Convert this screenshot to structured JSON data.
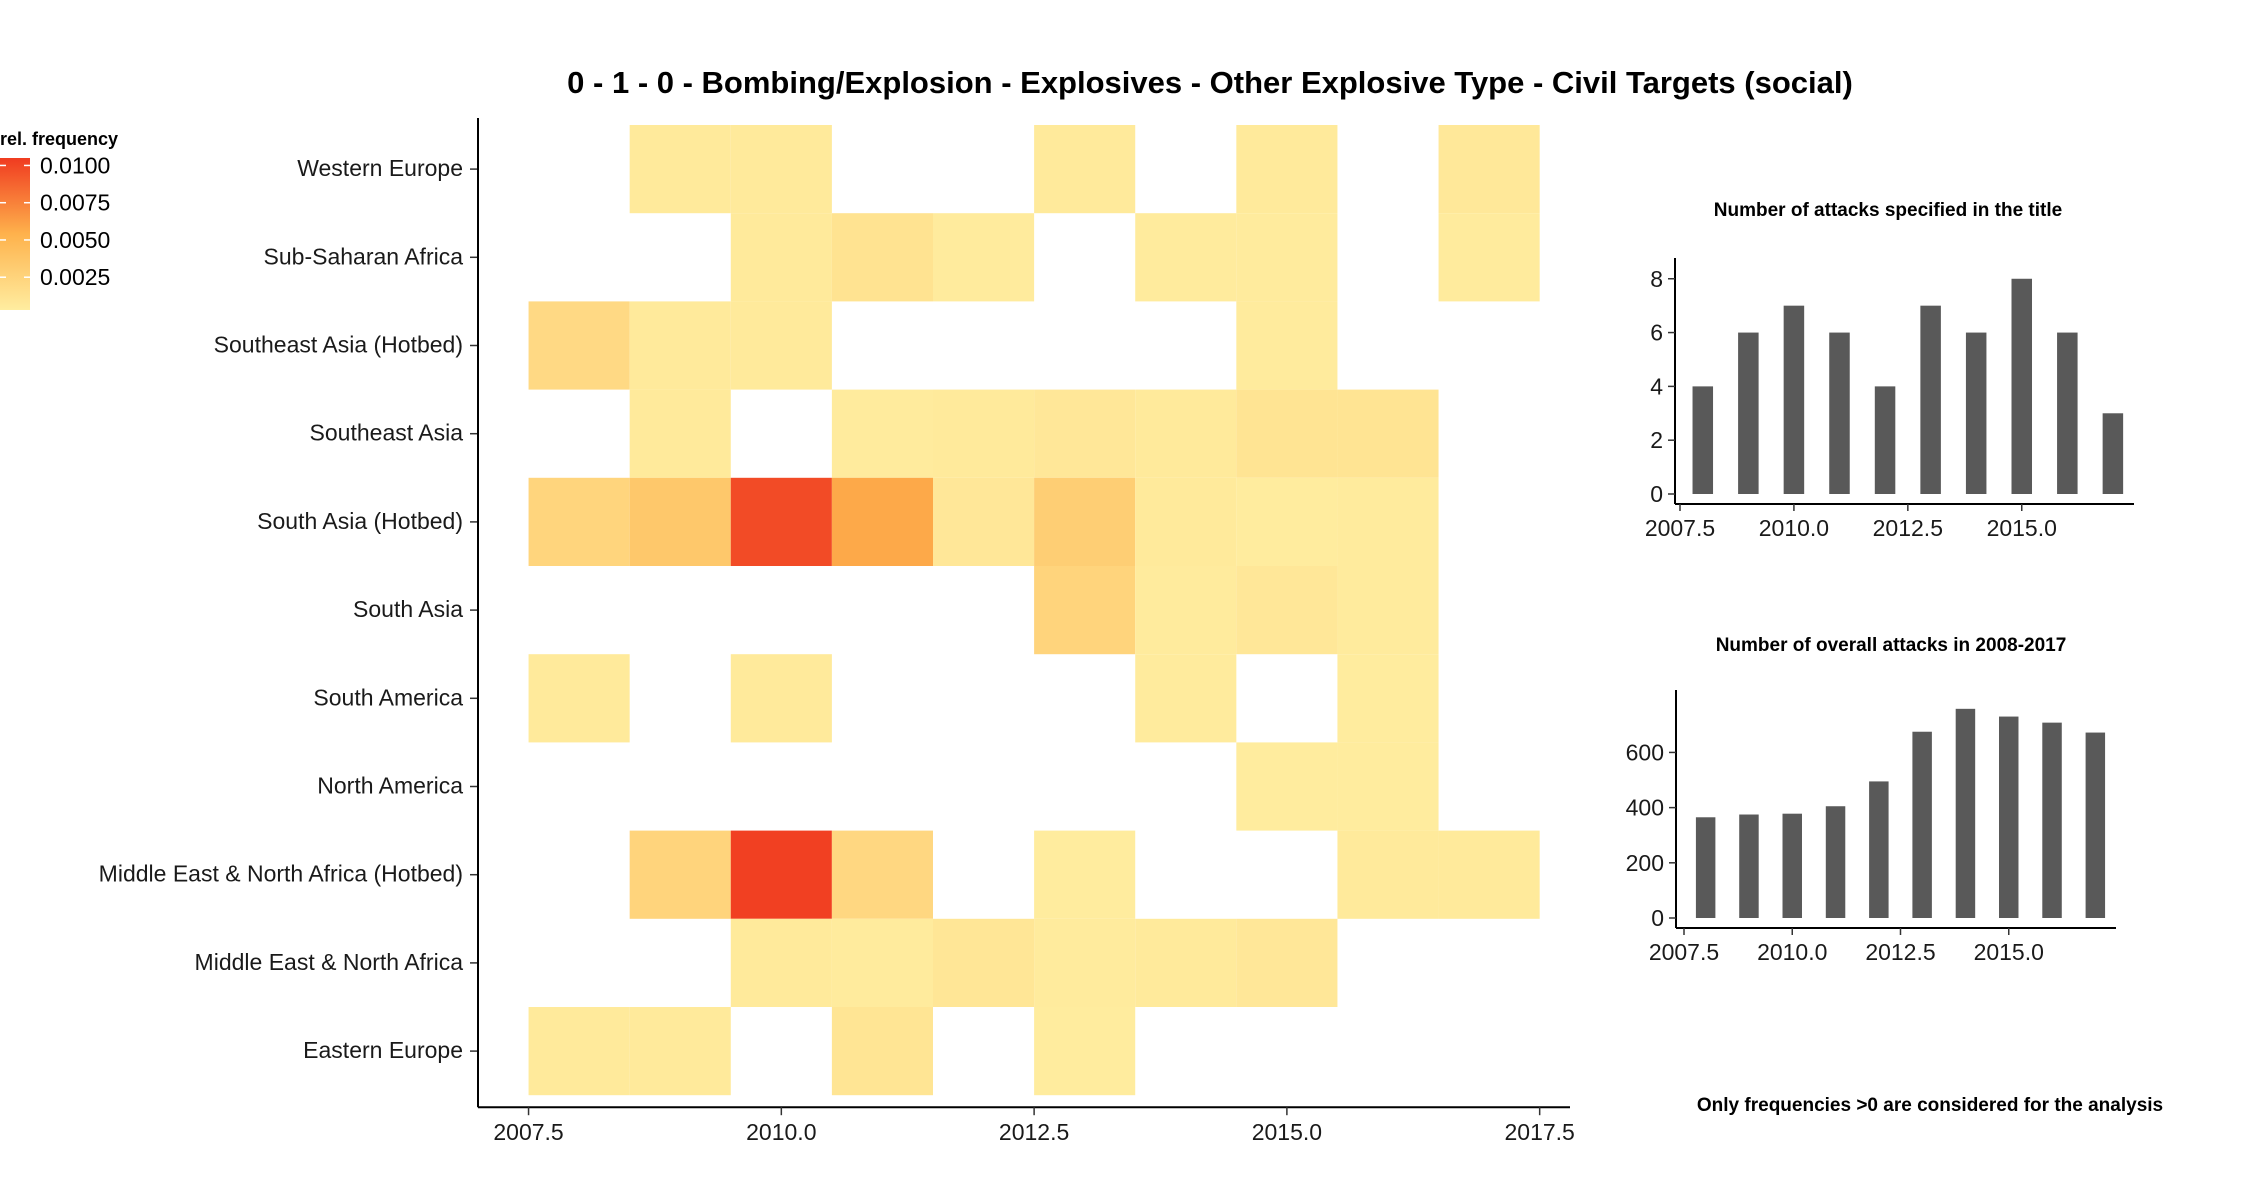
{
  "chart_data": [
    {
      "type": "heatmap",
      "title": "0 - 1 - 0 - Bombing/Explosion - Explosives - Other Explosive Type - Civil Targets (social)",
      "legend": {
        "title": "rel. frequency",
        "ticks": [
          "0.0100",
          "0.0075",
          "0.0050",
          "0.0025"
        ],
        "tick_values": [
          0.01,
          0.0075,
          0.005,
          0.0025
        ],
        "min": 0.0003,
        "max": 0.0105
      },
      "x": [
        2008,
        2009,
        2010,
        2011,
        2012,
        2013,
        2014,
        2015,
        2016,
        2017
      ],
      "x_ticks": [
        "2007.5",
        "2010.0",
        "2012.5",
        "2015.0",
        "2017.5"
      ],
      "x_tick_values": [
        2007.5,
        2010.0,
        2012.5,
        2015.0,
        2017.5
      ],
      "xlim": [
        2007.0,
        2017.8
      ],
      "regions": [
        "Western Europe",
        "Sub-Saharan Africa",
        "Southeast Asia (Hotbed)",
        "Southeast Asia",
        "South Asia (Hotbed)",
        "South Asia",
        "South America",
        "North America",
        "Middle East & North Africa (Hotbed)",
        "Middle East & North Africa",
        "Eastern Europe"
      ],
      "values": [
        [
          null,
          0.0006,
          0.0006,
          null,
          null,
          0.0006,
          null,
          0.0006,
          null,
          0.0007
        ],
        [
          null,
          null,
          0.0006,
          0.0012,
          0.0005,
          null,
          0.0005,
          0.0005,
          null,
          0.0005
        ],
        [
          0.002,
          0.0006,
          0.0006,
          null,
          null,
          null,
          null,
          0.0005,
          null,
          null
        ],
        [
          null,
          0.0006,
          null,
          0.0005,
          0.0006,
          0.0008,
          0.0006,
          0.0011,
          0.0011,
          null
        ],
        [
          0.0024,
          0.0035,
          0.0098,
          0.0058,
          0.0008,
          0.003,
          0.0006,
          0.0004,
          0.0005,
          null
        ],
        [
          null,
          null,
          null,
          null,
          null,
          0.0025,
          0.0005,
          0.0008,
          0.0005,
          null
        ],
        [
          0.0006,
          null,
          0.0006,
          null,
          null,
          null,
          0.0005,
          null,
          0.0004,
          null
        ],
        [
          null,
          null,
          null,
          null,
          null,
          null,
          null,
          0.0004,
          0.0004,
          null
        ],
        [
          null,
          0.0025,
          0.0103,
          0.0022,
          null,
          0.0004,
          null,
          null,
          0.0006,
          0.0006
        ],
        [
          null,
          null,
          0.0006,
          0.0005,
          0.0009,
          0.0005,
          0.0006,
          0.0008,
          null,
          null
        ],
        [
          0.0006,
          0.0006,
          null,
          0.001,
          null,
          0.0004,
          null,
          null,
          null,
          null
        ]
      ]
    },
    {
      "type": "bar",
      "title": "Number of attacks specified in the title",
      "x": [
        2008,
        2009,
        2010,
        2011,
        2012,
        2013,
        2014,
        2015,
        2016,
        2017
      ],
      "values": [
        4,
        6,
        7,
        6,
        4,
        7,
        6,
        8,
        6,
        3
      ],
      "xlim": [
        2007.5,
        2017.2
      ],
      "ylim": [
        0,
        8.4
      ],
      "x_ticks": [
        "2007.5",
        "2010.0",
        "2012.5",
        "2015.0"
      ],
      "x_tick_values": [
        2007.5,
        2010.0,
        2012.5,
        2015.0
      ],
      "y_ticks": [
        "0",
        "2",
        "4",
        "6",
        "8"
      ],
      "y_tick_values": [
        0,
        2,
        4,
        6,
        8
      ]
    },
    {
      "type": "bar",
      "title": "Number of overall attacks in 2008-2017",
      "x": [
        2008,
        2009,
        2010,
        2011,
        2012,
        2013,
        2014,
        2015,
        2016,
        2017
      ],
      "values": [
        365,
        375,
        378,
        405,
        495,
        675,
        758,
        730,
        708,
        672
      ],
      "xlim": [
        2007.5,
        2017.2
      ],
      "ylim": [
        0,
        790
      ],
      "x_ticks": [
        "2007.5",
        "2010.0",
        "2012.5",
        "2015.0"
      ],
      "x_tick_values": [
        2007.5,
        2010.0,
        2012.5,
        2015.0
      ],
      "y_ticks": [
        "0",
        "200",
        "400",
        "600"
      ],
      "y_tick_values": [
        0,
        200,
        400,
        600
      ]
    }
  ],
  "footnote": "Only frequencies >0 are considered for the analysis",
  "colors": {
    "low": "#ffeda0",
    "mid": "#feb24c",
    "high": "#f03b20",
    "bar": "#595959",
    "axis": "#000000"
  }
}
